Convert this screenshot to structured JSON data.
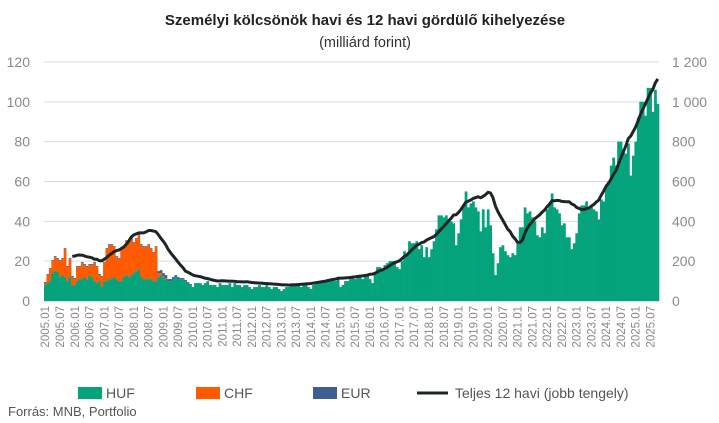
{
  "chart_data": {
    "type": "bar",
    "title": "Személyi kölcsönök havi és 12 havi gördülő kihelyezése",
    "subtitle": "(milliárd forint)",
    "source": "Forrás: MNB, Portfolio",
    "start_month": "2005.01",
    "x_tick_labels": [
      "2005.01",
      "2005.07",
      "2006.01",
      "2006.07",
      "2007.01",
      "2007.07",
      "2008.01",
      "2008.07",
      "2009.01",
      "2009.07",
      "2010.01",
      "2010.07",
      "2011.01",
      "2011.07",
      "2012.01",
      "2012.07",
      "2013.01",
      "2013.07",
      "2014.01",
      "2014.07",
      "2015.01",
      "2015.07",
      "2016.01",
      "2016.07",
      "2017.01",
      "2017.07",
      "2018.01",
      "2018.07",
      "2019.01",
      "2019.07",
      "2020.01",
      "2020.07",
      "2021.01",
      "2021.07",
      "2022.01",
      "2022.07",
      "2023.01",
      "2023.07",
      "2024.01",
      "2024.07",
      "2025.01",
      "2025.07"
    ],
    "y_left": {
      "ylim": [
        0,
        120
      ],
      "ticks": [
        "0",
        "20",
        "40",
        "60",
        "80",
        "100",
        "120"
      ]
    },
    "y_right": {
      "ylim": [
        0,
        1200
      ],
      "ticks": [
        "0",
        "200",
        "400",
        "600",
        "800",
        "1 000",
        "1 200"
      ]
    },
    "grid": true,
    "legend_position": "bottom",
    "legend": [
      "HUF",
      "CHF",
      "EUR",
      "Teljes 12 havi (jobb tengely)"
    ],
    "colors": {
      "HUF": "#05a37c",
      "CHF": "#ff5a00",
      "EUR": "#3d5f92",
      "line": "#1d2624",
      "grid": "#d9d9d9"
    },
    "series": [
      {
        "name": "HUF",
        "stacked": true,
        "values": [
          8,
          9,
          10,
          14,
          15,
          15,
          12,
          13,
          12,
          10,
          12,
          8,
          8,
          10,
          11,
          11,
          12,
          11,
          13,
          12,
          10,
          9,
          10,
          7,
          10,
          10,
          11,
          11,
          12,
          11,
          10,
          10,
          12,
          13,
          12,
          13,
          14,
          15,
          16,
          12,
          11,
          11,
          11,
          11,
          10,
          10,
          12,
          13,
          12,
          11,
          10,
          10,
          11,
          12,
          11,
          11,
          11,
          10,
          9,
          8,
          7,
          9,
          9,
          9,
          8,
          9,
          10,
          8,
          8,
          8,
          7,
          9,
          8,
          8,
          8,
          9,
          7,
          9,
          8,
          8,
          7,
          8,
          8,
          7,
          6,
          7,
          7,
          8,
          7,
          7,
          8,
          7,
          6,
          7,
          7,
          6,
          5,
          6,
          7,
          7,
          8,
          8,
          8,
          8,
          7,
          8,
          8,
          7,
          6,
          8,
          9,
          9,
          10,
          10,
          10,
          11,
          10,
          10,
          10,
          11,
          7,
          8,
          10,
          10,
          11,
          12,
          11,
          13,
          12,
          11,
          12,
          13,
          11,
          9,
          14,
          17,
          17,
          16,
          18,
          19,
          20,
          20,
          19,
          17,
          16,
          20,
          25,
          24,
          30,
          29,
          29,
          30,
          26,
          28,
          22,
          27,
          22,
          26,
          30,
          36,
          43,
          43,
          42,
          43,
          41,
          40,
          39,
          28,
          34,
          41,
          48,
          55,
          47,
          49,
          50,
          47,
          45,
          35,
          46,
          37,
          46,
          38,
          24,
          13,
          19,
          27,
          28,
          25,
          23,
          22,
          24,
          23,
          29,
          37,
          37,
          47,
          44,
          45,
          42,
          40,
          33,
          32,
          37,
          34,
          46,
          49,
          54,
          47,
          46,
          44,
          38,
          39,
          32,
          32,
          26,
          29,
          34,
          44,
          48,
          48,
          50,
          47,
          48,
          46,
          45,
          41,
          51,
          50,
          58,
          60,
          68,
          72,
          68,
          80,
          80,
          76,
          74,
          79,
          63,
          73,
          80,
          92,
          100,
          100,
          93,
          107,
          107,
          95,
          106,
          99
        ]
      },
      {
        "name": "CHF",
        "stacked": true,
        "values": [
          1,
          4,
          6,
          6,
          7,
          6,
          8,
          8,
          14,
          7,
          9,
          4,
          3,
          7,
          6,
          8,
          6,
          6,
          5,
          6,
          9,
          8,
          3,
          5,
          9,
          16,
          17,
          17,
          15,
          11,
          11,
          16,
          15,
          17,
          18,
          19,
          15,
          16,
          17,
          16,
          16,
          16,
          17,
          15,
          14,
          17,
          2,
          1,
          0.5,
          0.5,
          0,
          0,
          0,
          0,
          0,
          0,
          0,
          0,
          0,
          0
        ]
      },
      {
        "name": "EUR",
        "stacked": true,
        "values": [
          0.5,
          0.5,
          0.5,
          0.5,
          0.5,
          0.5,
          0.5,
          0.5,
          0.5,
          0.5,
          0.5,
          0.5,
          0.5,
          0.5,
          0.5,
          0.5,
          0.5,
          0.5,
          0.5,
          0.5,
          0.5,
          0.5,
          0.5,
          0.5,
          0.5,
          0.5,
          0.5,
          0.5,
          0.5,
          0.5,
          0.5,
          0.5,
          0.5,
          0.5,
          0.5,
          0.5,
          0.5,
          0.5,
          0.5,
          0.5,
          0.5,
          0.5,
          0.5,
          0.5,
          0.5,
          0.5,
          1,
          1.5,
          1.5,
          1.5,
          1,
          1,
          1,
          1,
          1,
          0.5,
          0.5,
          0.5,
          0.5,
          0.5
        ]
      },
      {
        "name": "Teljes 12 havi (jobb tengely)",
        "type": "line",
        "axis": "right",
        "derived": "rolling 12-month sum of HUF+CHF+EUR"
      }
    ]
  }
}
